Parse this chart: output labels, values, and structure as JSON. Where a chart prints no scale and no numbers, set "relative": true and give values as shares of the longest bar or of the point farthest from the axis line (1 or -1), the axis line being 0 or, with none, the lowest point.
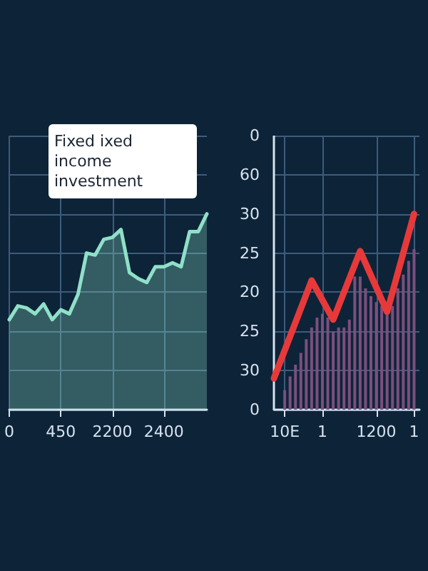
{
  "chart_data": [
    {
      "type": "area",
      "relative": true,
      "annotations": [
        "Fixed ixed income investment"
      ],
      "categories": [
        "0",
        null,
        null,
        null,
        null,
        null,
        "450",
        null,
        null,
        null,
        null,
        null,
        "2200",
        null,
        null,
        null,
        null,
        null,
        "2400",
        null,
        null,
        null,
        null,
        null
      ],
      "grid": true,
      "marker": "none",
      "series": [
        {
          "color": "#8fe0c8",
          "values": [
            0.46,
            0.53,
            0.52,
            0.49,
            0.54,
            0.46,
            0.51,
            0.49,
            0.59,
            0.8,
            0.79,
            0.87,
            0.88,
            0.92,
            0.7,
            0.67,
            0.65,
            0.73,
            0.73,
            0.75,
            0.73,
            0.91,
            0.91,
            1
          ]
        }
      ]
    },
    {
      "type": "bar",
      "relative": true,
      "annotations": [
        "0",
        "60",
        "30",
        "25",
        "20",
        "25",
        "30",
        "0"
      ],
      "categories": [
        null,
        null,
        "10E",
        null,
        null,
        null,
        null,
        null,
        null,
        "1",
        null,
        null,
        null,
        null,
        null,
        null,
        null,
        null,
        null,
        "1200",
        null,
        null,
        null,
        null,
        null,
        null,
        "1",
        null
      ],
      "grid": true,
      "marker": "none",
      "series": [
        {
          "color": "#7a4f7e",
          "values": [
            null,
            null,
            0.1,
            0.17,
            0.23,
            0.29,
            0.36,
            0.42,
            0.47,
            0.49,
            0.47,
            0.4,
            0.42,
            0.42,
            0.46,
            0.68,
            0.68,
            0.62,
            0.58,
            0.55,
            0.53,
            0.51,
            0.53,
            0.62,
            0.69,
            0.76,
            0.82,
            null
          ]
        },
        {
          "type": "line",
          "color": "#e8393a",
          "values": [
            0.16,
            null,
            null,
            null,
            null,
            null,
            null,
            0.66,
            null,
            null,
            null,
            0.46,
            null,
            null,
            null,
            null,
            0.81,
            null,
            null,
            null,
            null,
            0.5,
            null,
            null,
            null,
            null,
            1,
            null
          ]
        }
      ]
    }
  ]
}
